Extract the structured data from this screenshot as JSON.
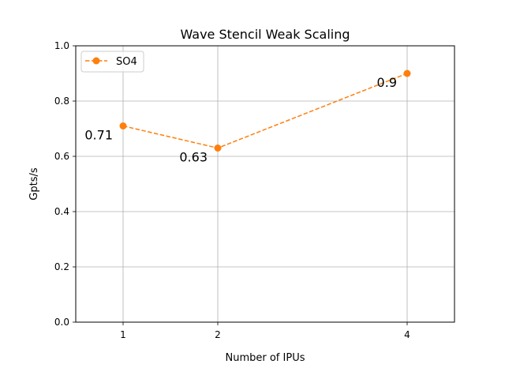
{
  "chart_data": {
    "type": "line",
    "title": "Wave Stencil Weak Scaling",
    "xlabel": "Number of IPUs",
    "ylabel": "Gpts/s",
    "x": [
      1,
      2,
      4
    ],
    "xticks": [
      "1",
      "2",
      "4"
    ],
    "xlim": [
      0.5,
      4.5
    ],
    "ylim": [
      0.0,
      1.0
    ],
    "yticks": [
      "0.0",
      "0.2",
      "0.4",
      "0.6",
      "0.8",
      "1.0"
    ],
    "grid": true,
    "legend_position": "top-left",
    "series": [
      {
        "name": "SO4",
        "values": [
          0.71,
          0.63,
          0.9
        ],
        "data_labels": [
          "0.71",
          "0.63",
          "0.9"
        ],
        "color": "#ff7f0e",
        "line_style": "dashed",
        "marker": "circle"
      }
    ]
  }
}
